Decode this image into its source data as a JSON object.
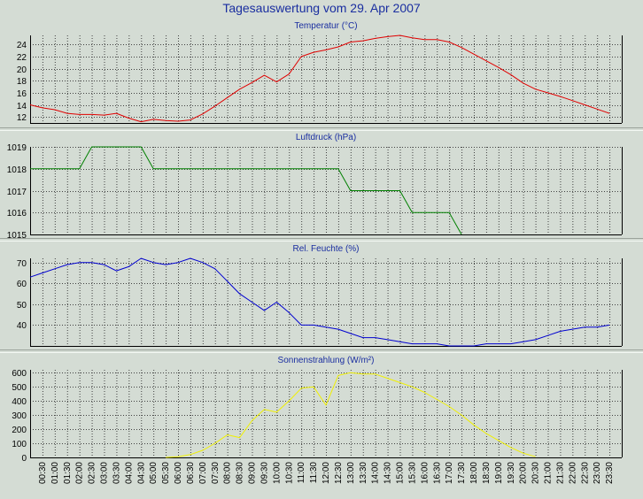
{
  "title": "Tagesauswertung vom 29. Apr 2007",
  "colors": {
    "background": "#d4dcd4",
    "plot_background": "#d4dcd4",
    "grid": "#404040",
    "title": "#1a2ea0"
  },
  "chart_data": [
    {
      "type": "line",
      "title": "Temperatur (°C)",
      "color": "#e00000",
      "x": [
        "00:00",
        "00:30",
        "01:00",
        "01:30",
        "02:00",
        "02:30",
        "03:00",
        "03:30",
        "04:00",
        "04:30",
        "05:00",
        "05:30",
        "06:00",
        "06:30",
        "07:00",
        "07:30",
        "08:00",
        "08:30",
        "09:00",
        "09:30",
        "10:00",
        "10:30",
        "11:00",
        "11:30",
        "12:00",
        "12:30",
        "13:00",
        "13:30",
        "14:00",
        "14:30",
        "15:00",
        "15:30",
        "16:00",
        "16:30",
        "17:00",
        "17:30",
        "18:00",
        "18:30",
        "19:00",
        "19:30",
        "20:00",
        "20:30",
        "21:00",
        "21:30",
        "22:00",
        "22:30",
        "23:00",
        "23:30"
      ],
      "values": [
        14,
        13.5,
        13.2,
        12.6,
        12.4,
        12.4,
        12.3,
        12.6,
        11.8,
        11.2,
        11.6,
        11.4,
        11.3,
        11.5,
        12.5,
        13.8,
        15.2,
        16.6,
        17.7,
        18.9,
        17.8,
        19.1,
        22.0,
        22.7,
        23.1,
        23.6,
        24.4,
        24.6,
        25.0,
        25.3,
        25.5,
        25.1,
        24.8,
        24.8,
        24.4,
        23.5,
        22.4,
        21.3,
        20.2,
        19.0,
        17.6,
        16.6,
        16.0,
        15.4,
        14.7,
        14.0,
        13.3,
        12.6
      ],
      "yticks": [
        12,
        14,
        16,
        18,
        20,
        22,
        24
      ],
      "ylim": [
        11,
        25.5
      ]
    },
    {
      "type": "line",
      "title": "Luftdruck (hPa)",
      "color": "#008000",
      "x": [
        "00:00",
        "00:30",
        "01:00",
        "01:30",
        "02:00",
        "02:30",
        "03:00",
        "03:30",
        "04:00",
        "04:30",
        "05:00",
        "05:30",
        "06:00",
        "06:30",
        "07:00",
        "07:30",
        "08:00",
        "08:30",
        "09:00",
        "09:30",
        "10:00",
        "10:30",
        "11:00",
        "11:30",
        "12:00",
        "12:30",
        "13:00",
        "13:30",
        "14:00",
        "14:30",
        "15:00",
        "15:30",
        "16:00",
        "16:30",
        "17:00",
        "17:30",
        "18:00",
        "18:30",
        "19:00",
        "19:30",
        "20:00",
        "20:30",
        "21:00",
        "21:30",
        "22:00",
        "22:30",
        "23:00",
        "23:30"
      ],
      "values": [
        1018,
        1018,
        1018,
        1018,
        1018,
        1019,
        1019,
        1019,
        1019,
        1019,
        1018,
        1018,
        1018,
        1018,
        1018,
        1018,
        1018,
        1018,
        1018,
        1018,
        1018,
        1018,
        1018,
        1018,
        1018,
        1018,
        1017,
        1017,
        1017,
        1017,
        1017,
        1016,
        1016,
        1016,
        1016,
        1015,
        null,
        null,
        null,
        null,
        null,
        null,
        null,
        null,
        null,
        null,
        null,
        null
      ],
      "yticks": [
        1015,
        1016,
        1017,
        1018,
        1019
      ],
      "ylim": [
        1015,
        1019
      ]
    },
    {
      "type": "line",
      "title": "Rel. Feuchte (%)",
      "color": "#0000d0",
      "x": [
        "00:00",
        "00:30",
        "01:00",
        "01:30",
        "02:00",
        "02:30",
        "03:00",
        "03:30",
        "04:00",
        "04:30",
        "05:00",
        "05:30",
        "06:00",
        "06:30",
        "07:00",
        "07:30",
        "08:00",
        "08:30",
        "09:00",
        "09:30",
        "10:00",
        "10:30",
        "11:00",
        "11:30",
        "12:00",
        "12:30",
        "13:00",
        "13:30",
        "14:00",
        "14:30",
        "15:00",
        "15:30",
        "16:00",
        "16:30",
        "17:00",
        "17:30",
        "18:00",
        "18:30",
        "19:00",
        "19:30",
        "20:00",
        "20:30",
        "21:00",
        "21:30",
        "22:00",
        "22:30",
        "23:00",
        "23:30"
      ],
      "values": [
        63,
        65,
        67,
        69,
        70,
        70,
        69,
        66,
        68,
        72,
        70,
        69,
        70,
        72,
        70,
        67,
        61,
        55,
        51,
        47,
        51,
        46,
        40,
        40,
        39,
        38,
        36,
        34,
        34,
        33,
        32,
        31,
        31,
        31,
        30,
        30,
        30,
        31,
        31,
        31,
        32,
        33,
        35,
        37,
        38,
        39,
        39,
        40
      ],
      "yticks": [
        40,
        50,
        60,
        70
      ],
      "ylim": [
        30,
        72
      ]
    },
    {
      "type": "line",
      "title": "Sonnenstrahlung (W/m²)",
      "color": "#f0f000",
      "x": [
        "00:00",
        "00:30",
        "01:00",
        "01:30",
        "02:00",
        "02:30",
        "03:00",
        "03:30",
        "04:00",
        "04:30",
        "05:00",
        "05:30",
        "06:00",
        "06:30",
        "07:00",
        "07:30",
        "08:00",
        "08:30",
        "09:00",
        "09:30",
        "10:00",
        "10:30",
        "11:00",
        "11:30",
        "12:00",
        "12:30",
        "13:00",
        "13:30",
        "14:00",
        "14:30",
        "15:00",
        "15:30",
        "16:00",
        "16:30",
        "17:00",
        "17:30",
        "18:00",
        "18:30",
        "19:00",
        "19:30",
        "20:00",
        "20:30",
        "21:00",
        "21:30",
        "22:00",
        "22:30",
        "23:00",
        "23:30"
      ],
      "values": [
        null,
        null,
        null,
        null,
        null,
        null,
        null,
        null,
        null,
        null,
        null,
        0,
        5,
        20,
        50,
        100,
        160,
        140,
        260,
        340,
        320,
        400,
        490,
        500,
        370,
        580,
        600,
        590,
        590,
        560,
        530,
        500,
        460,
        410,
        360,
        300,
        230,
        170,
        120,
        70,
        30,
        5,
        null,
        null,
        null,
        null,
        null,
        null
      ],
      "yticks": [
        0,
        100,
        200,
        300,
        400,
        500,
        600
      ],
      "ylim": [
        0,
        620
      ]
    }
  ],
  "xticks": [
    "00:30",
    "01:00",
    "01:30",
    "02:00",
    "02:30",
    "03:00",
    "03:30",
    "04:00",
    "04:30",
    "05:00",
    "05:30",
    "06:00",
    "06:30",
    "07:00",
    "07:30",
    "08:00",
    "08:30",
    "09:00",
    "09:30",
    "10:00",
    "10:30",
    "11:00",
    "11:30",
    "12:00",
    "12:30",
    "13:00",
    "13:30",
    "14:00",
    "14:30",
    "15:00",
    "15:30",
    "16:00",
    "16:30",
    "17:00",
    "17:30",
    "18:00",
    "18:30",
    "19:00",
    "19:30",
    "20:00",
    "20:30",
    "21:00",
    "21:30",
    "22:00",
    "22:30",
    "23:00",
    "23:30"
  ]
}
